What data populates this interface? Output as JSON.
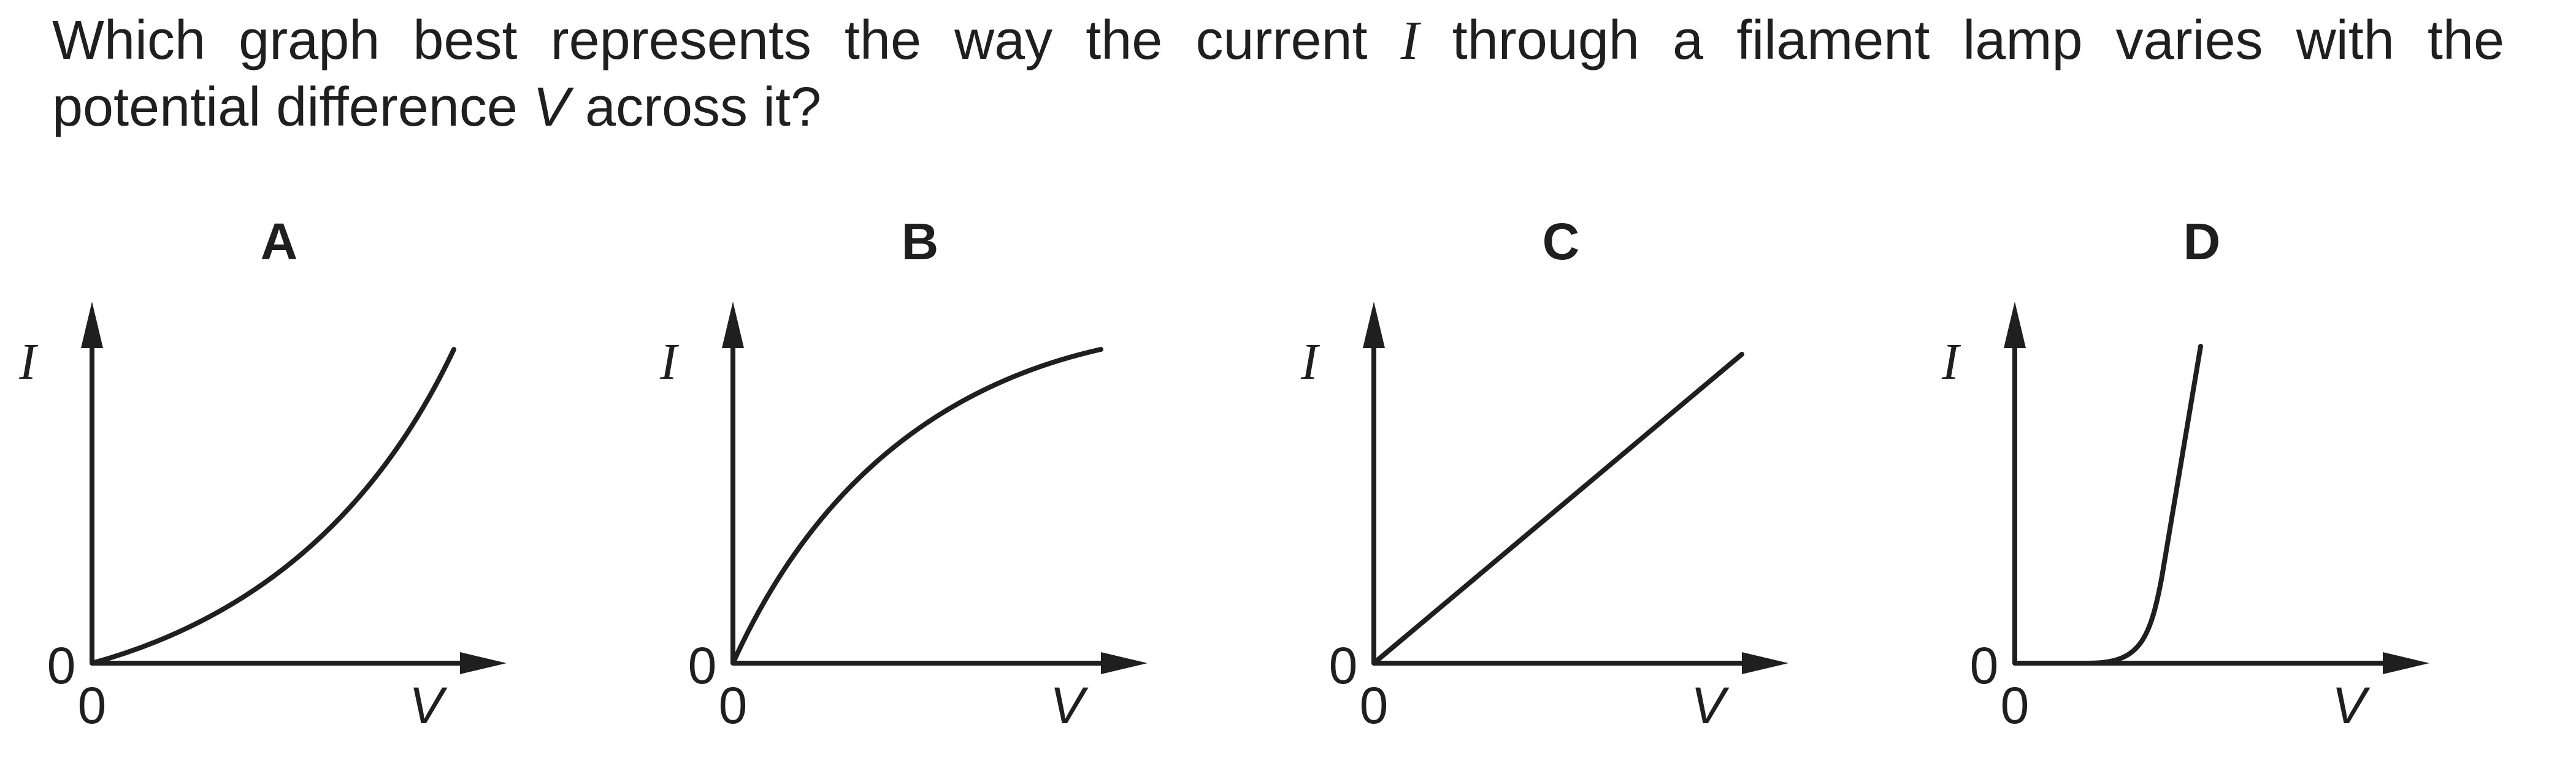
{
  "question": {
    "line1_parts": [
      "Which graph best represents the way the current ",
      "I",
      " through a filament lamp varies with the"
    ],
    "line2_parts": [
      "potential difference ",
      "V",
      " across it?"
    ]
  },
  "graphs": [
    {
      "letter": "A",
      "y_axis_label": "I",
      "x_axis_label": "V",
      "y_origin_label": "0",
      "x_origin_label": "0",
      "curve_shape": "concave-up"
    },
    {
      "letter": "B",
      "y_axis_label": "I",
      "x_axis_label": "V",
      "y_origin_label": "0",
      "x_origin_label": "0",
      "curve_shape": "concave-down"
    },
    {
      "letter": "C",
      "y_axis_label": "I",
      "x_axis_label": "V",
      "y_origin_label": "0",
      "x_origin_label": "0",
      "curve_shape": "linear"
    },
    {
      "letter": "D",
      "y_axis_label": "I",
      "x_axis_label": "V",
      "y_origin_label": "0",
      "x_origin_label": "0",
      "curve_shape": "threshold-then-steep"
    }
  ]
}
